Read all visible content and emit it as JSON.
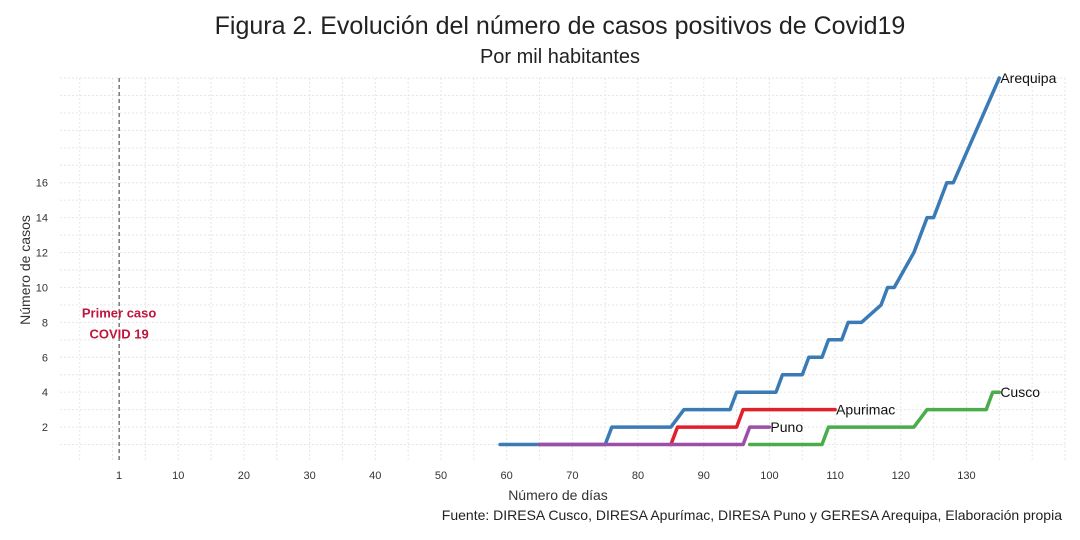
{
  "chart_data": {
    "type": "line",
    "title": "Figura 2. Evolución del número de casos positivos de Covid19",
    "subtitle": "Por mil habitantes",
    "xlabel": "Número de días",
    "ylabel": "Número de casos",
    "source": "Fuente: DIRESA Cusco, DIRESA Apurímac, DIRESA Puno y GERESA Arequipa, Elaboración propia",
    "xlim": [
      -8,
      145
    ],
    "ylim": [
      0,
      22
    ],
    "xticks": [
      1,
      10,
      20,
      30,
      40,
      50,
      60,
      70,
      80,
      90,
      100,
      110,
      120,
      130
    ],
    "yticks": [
      2,
      4,
      6,
      8,
      10,
      12,
      14,
      16
    ],
    "grid": true,
    "legend": "none",
    "vline": {
      "x": 1,
      "label_line1": "Primer caso",
      "label_line2": "COVID 19"
    },
    "series": [
      {
        "name": "Arequipa",
        "color": "#3a7bb5",
        "points": [
          [
            59,
            1
          ],
          [
            75,
            1
          ],
          [
            76,
            2
          ],
          [
            85,
            2
          ],
          [
            87,
            3
          ],
          [
            94,
            3
          ],
          [
            95,
            4
          ],
          [
            101,
            4
          ],
          [
            102,
            5
          ],
          [
            105,
            5
          ],
          [
            106,
            6
          ],
          [
            108,
            6
          ],
          [
            109,
            7
          ],
          [
            111,
            7
          ],
          [
            112,
            8
          ],
          [
            114,
            8
          ],
          [
            117,
            9
          ],
          [
            118,
            10
          ],
          [
            119,
            10
          ],
          [
            122,
            12
          ],
          [
            124,
            14
          ],
          [
            125,
            14
          ],
          [
            127,
            16
          ],
          [
            128,
            16
          ],
          [
            135,
            22
          ]
        ]
      },
      {
        "name": "Apurimac",
        "color": "#e0202a",
        "points": [
          [
            85,
            1
          ],
          [
            86,
            2
          ],
          [
            95,
            2
          ],
          [
            96,
            3
          ],
          [
            110,
            3
          ]
        ]
      },
      {
        "name": "Puno",
        "color": "#9b4fa8",
        "points": [
          [
            65,
            1
          ],
          [
            96,
            1
          ],
          [
            97,
            2
          ],
          [
            100,
            2
          ]
        ]
      },
      {
        "name": "Cusco",
        "color": "#4aac4a",
        "points": [
          [
            97,
            1
          ],
          [
            108,
            1
          ],
          [
            109,
            2
          ],
          [
            122,
            2
          ],
          [
            124,
            3
          ],
          [
            133,
            3
          ],
          [
            134,
            4
          ],
          [
            135,
            4
          ]
        ]
      }
    ]
  }
}
